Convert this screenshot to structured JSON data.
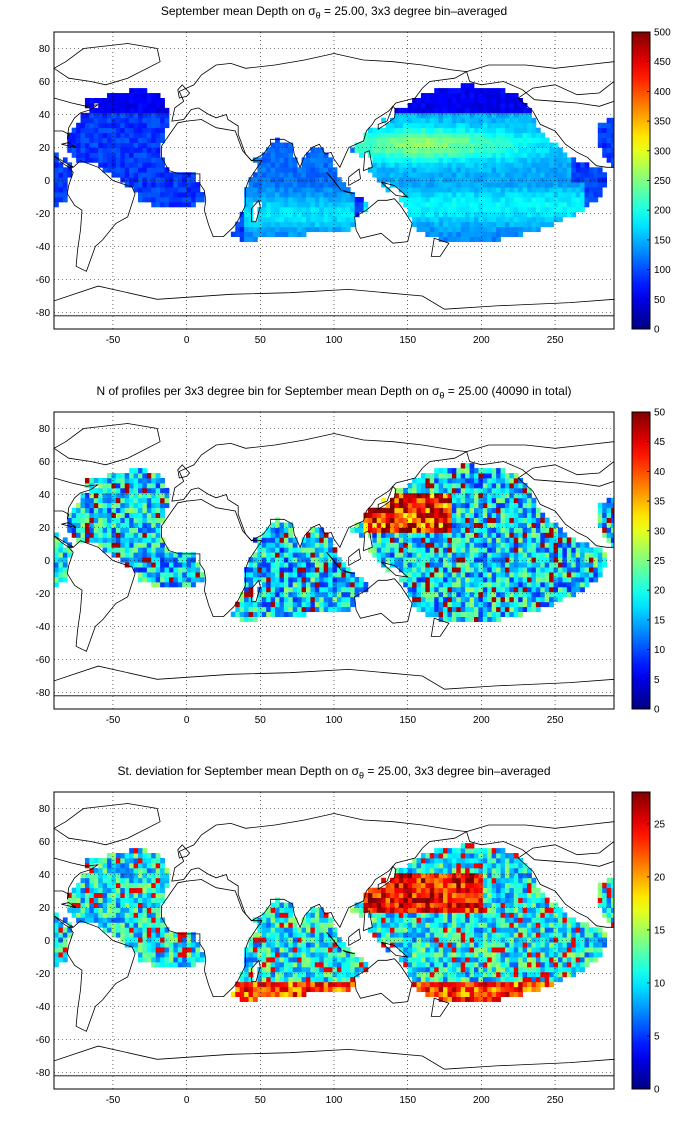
{
  "panels": [
    {
      "title_pre": "September mean Depth on σ",
      "title_sub": "θ",
      "title_post": " = 25.00, 3x3 degree bin–averaged",
      "colorbar": {
        "min": 0,
        "max": 500,
        "ticks": [
          "0",
          "50",
          "100",
          "150",
          "200",
          "250",
          "300",
          "350",
          "400",
          "450",
          "500"
        ]
      },
      "field": "depth"
    },
    {
      "title_pre": "N of profiles per 3x3 degree bin for September mean Depth on σ",
      "title_sub": "θ",
      "title_post": " = 25.00 (40090 in total)",
      "colorbar": {
        "min": 0,
        "max": 50,
        "ticks": [
          "0",
          "5",
          "10",
          "15",
          "20",
          "25",
          "30",
          "35",
          "40",
          "45",
          "50"
        ]
      },
      "field": "count"
    },
    {
      "title_pre": "St. deviation for September mean Depth on σ",
      "title_sub": "θ",
      "title_post": " = 25.00, 3x3 degree bin–averaged",
      "colorbar": {
        "min": 0,
        "max": 28,
        "ticks": [
          "0",
          "5",
          "10",
          "15",
          "20",
          "25"
        ]
      },
      "field": "std"
    }
  ],
  "axes": {
    "x_range": [
      -90,
      290
    ],
    "y_range": [
      -90,
      90
    ],
    "x_ticks": [
      "-50",
      "0",
      "50",
      "100",
      "150",
      "200",
      "250"
    ],
    "y_ticks": [
      "80",
      "60",
      "40",
      "20",
      "0",
      "-20",
      "-40",
      "-60",
      "-80"
    ],
    "grid": "dotted"
  },
  "colormap": "jet"
}
